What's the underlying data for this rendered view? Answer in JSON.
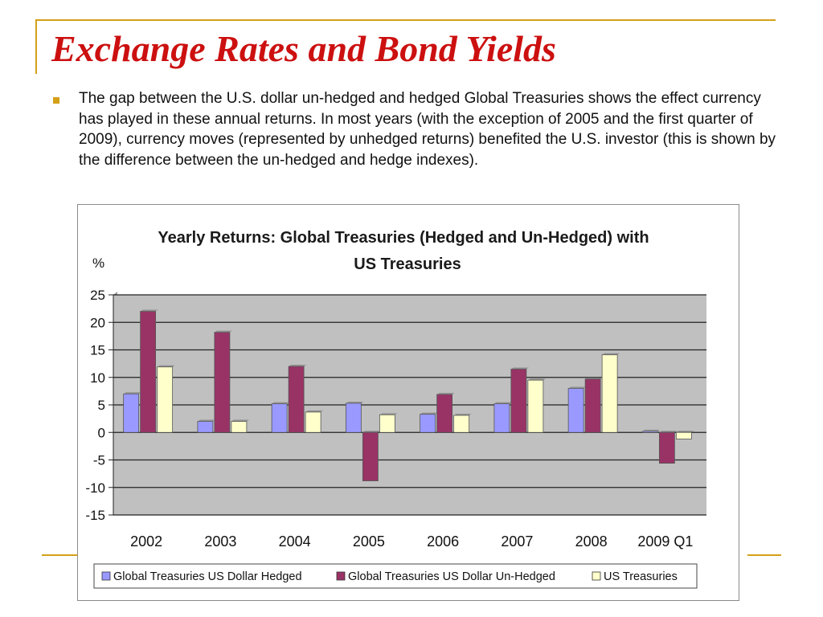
{
  "slide": {
    "title": "Exchange Rates and Bond Yields",
    "bullet": "The gap between the U.S. dollar un-hedged and hedged Global Treasuries shows the effect currency has played in these annual returns. In most years (with the exception of 2005 and the first quarter of 2009), currency moves (represented by unhedged returns) benefited the U.S. investor (this is shown by the difference between the un-hedged and hedge indexes)."
  },
  "colors": {
    "title": "#cc1010",
    "accent": "#d4a017",
    "plot_background": "#c0c0c0",
    "series": [
      "#9999ff",
      "#993366",
      "#ffffcc"
    ]
  },
  "chart_data": {
    "type": "bar",
    "title": "Yearly Returns: Global Treasuries  (Hedged and Un-Hedged) with US Treasuries",
    "title_lines": [
      "Yearly Returns: Global Treasuries  (Hedged and Un-Hedged) with",
      "US Treasuries"
    ],
    "ylabel": "%",
    "xlabel": "",
    "ylim": [
      -15,
      25
    ],
    "yticks": [
      25,
      20,
      15,
      10,
      5,
      0,
      -5,
      -10,
      -15
    ],
    "grid": true,
    "legend_position": "bottom",
    "categories": [
      "2002",
      "2003",
      "2004",
      "2005",
      "2006",
      "2007",
      "2008",
      "2009 Q1"
    ],
    "series": [
      {
        "name": "Global Treasuries US Dollar Hedged",
        "values": [
          7,
          2,
          5.2,
          5.3,
          3.3,
          5.2,
          8,
          0.2
        ]
      },
      {
        "name": "Global Treasuries US Dollar Un-Hedged",
        "values": [
          22,
          18.2,
          12,
          -8.8,
          6.9,
          11.5,
          9.7,
          -5.6
        ]
      },
      {
        "name": "US Treasuries",
        "values": [
          11.9,
          2,
          3.7,
          3.2,
          3.1,
          9.5,
          14.1,
          -1.2
        ]
      }
    ]
  }
}
